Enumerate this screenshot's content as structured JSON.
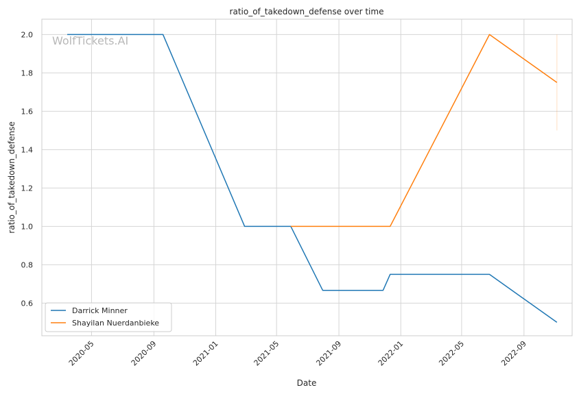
{
  "chart_data": {
    "type": "line",
    "title": "ratio_of_takedown_defense over time",
    "xlabel": "Date",
    "ylabel": "ratio_of_takedown_defense",
    "watermark": "WolfTickets.AI",
    "xlim": [
      "2020-01-24",
      "2022-12-05"
    ],
    "ylim": [
      0.43,
      2.08
    ],
    "x_ticks": [
      "2020-05-01",
      "2020-09-01",
      "2021-01-01",
      "2021-05-01",
      "2021-09-01",
      "2022-01-01",
      "2022-05-01",
      "2022-09-01"
    ],
    "x_tick_labels": [
      "2020-05",
      "2020-09",
      "2021-01",
      "2021-05",
      "2021-09",
      "2022-01",
      "2022-05",
      "2022-09"
    ],
    "y_ticks": [
      0.6,
      0.8,
      1.0,
      1.2,
      1.4,
      1.6,
      1.8,
      2.0
    ],
    "y_tick_labels": [
      "0.6",
      "0.8",
      "1.0",
      "1.2",
      "1.4",
      "1.6",
      "1.8",
      "2.0"
    ],
    "grid": true,
    "legend_position": "bottom-left",
    "series": [
      {
        "name": "Darrick Minner",
        "color": "#1f77b4",
        "points": [
          {
            "x": "2020-03-14",
            "y": 2.0
          },
          {
            "x": "2020-09-19",
            "y": 2.0
          },
          {
            "x": "2021-02-27",
            "y": 1.0
          },
          {
            "x": "2021-05-29",
            "y": 1.0
          },
          {
            "x": "2021-07-31",
            "y": 0.6667
          },
          {
            "x": "2021-11-27",
            "y": 0.6667
          },
          {
            "x": "2021-12-11",
            "y": 0.75
          },
          {
            "x": "2022-06-25",
            "y": 0.75
          },
          {
            "x": "2022-11-05",
            "y": 0.5
          }
        ]
      },
      {
        "name": "Shayilan Nuerdanbieke",
        "color": "#ff7f0e",
        "points": [
          {
            "x": "2021-05-29",
            "y": 1.0
          },
          {
            "x": "2021-12-11",
            "y": 1.0
          },
          {
            "x": "2022-06-25",
            "y": 2.0
          },
          {
            "x": "2022-11-05",
            "y": 1.75
          }
        ],
        "error_bar": {
          "x": "2022-11-05",
          "low": 1.5,
          "high": 2.0
        }
      }
    ]
  }
}
